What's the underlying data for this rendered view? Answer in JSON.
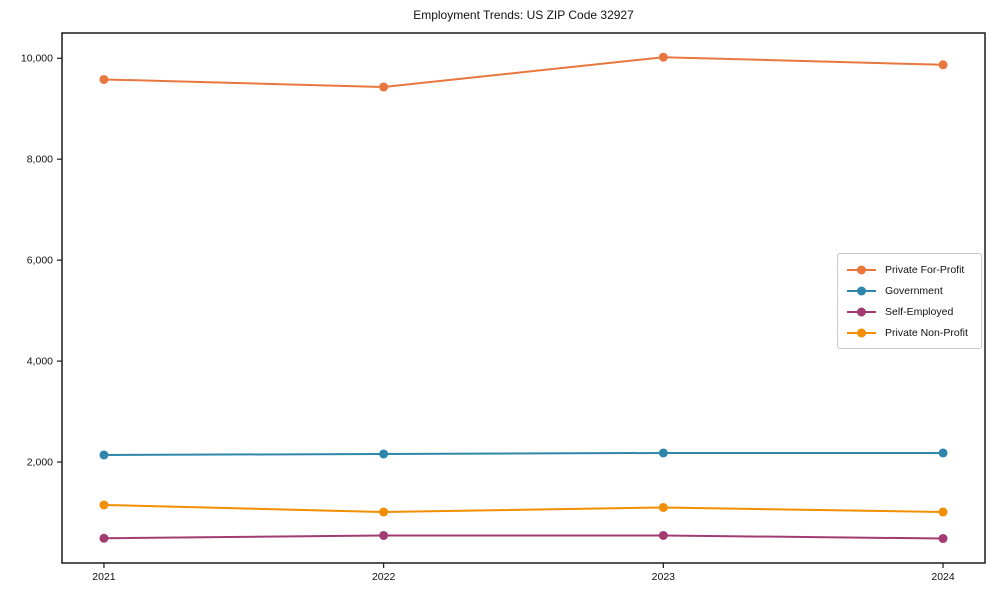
{
  "chart_data": {
    "type": "line",
    "title": "Employment Trends: US ZIP Code 32927",
    "x": [
      2021,
      2022,
      2023,
      2024
    ],
    "xtick_labels": [
      "2021",
      "2022",
      "2023",
      "2024"
    ],
    "series": [
      {
        "name": "Private For-Profit",
        "color": "#e8773e",
        "values": [
          9580,
          9430,
          10020,
          9870
        ]
      },
      {
        "name": "Government",
        "color": "#2e86ab",
        "values": [
          2140,
          2160,
          2180,
          2180
        ]
      },
      {
        "name": "Self-Employed",
        "color": "#a23b72",
        "values": [
          490,
          545,
          545,
          485
        ]
      },
      {
        "name": "Private Non-Profit",
        "color": "#f18f01",
        "values": [
          1150,
          1010,
          1100,
          1010
        ]
      }
    ],
    "yticks": [
      2000,
      4000,
      6000,
      8000,
      10000
    ],
    "ytick_labels": [
      "2,000",
      "4,000",
      "6,000",
      "8,000",
      "10,000"
    ],
    "xlim": [
      2020.85,
      2024.15
    ],
    "ylim": [
      0,
      10500
    ],
    "grid": false,
    "legend_position": "center-right",
    "axis_color": "#1a1a1a",
    "background_color": "#ffffff"
  }
}
